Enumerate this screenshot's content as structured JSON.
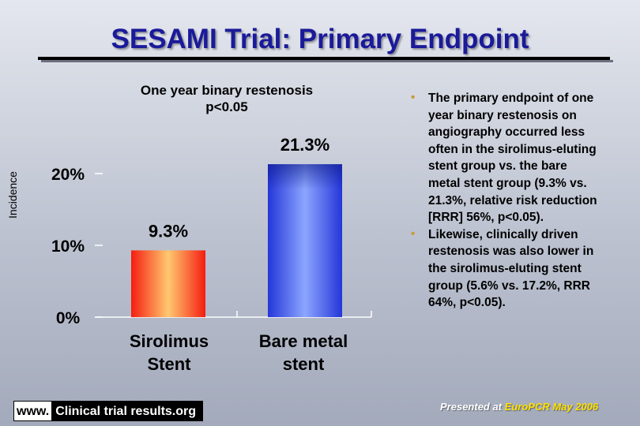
{
  "title": "SESAMI Trial: Primary Endpoint",
  "chart_data": {
    "type": "bar",
    "title": "One year binary restenosis",
    "subtitle": "p<0.05",
    "ylabel": "Incidence",
    "xlabel": "",
    "ylim": [
      0,
      25
    ],
    "yticks": [
      {
        "value": 0,
        "label": "0%"
      },
      {
        "value": 10,
        "label": "10%"
      },
      {
        "value": 20,
        "label": "20%"
      }
    ],
    "categories": [
      {
        "line1": "Sirolimus",
        "line2": "Stent"
      },
      {
        "line1": "Bare metal",
        "line2": "stent"
      }
    ],
    "values": [
      9.3,
      21.3
    ],
    "value_labels": [
      "9.3%",
      "21.3%"
    ],
    "colors": [
      "#ee3311",
      "#2e48e8"
    ],
    "grid": false
  },
  "bullets": [
    "The primary endpoint of one year binary restenosis on angiography occurred less often in the sirolimus-eluting stent group vs. the bare metal stent group (9.3% vs. 21.3%, relative risk reduction [RRR] 56%, p<0.05).",
    "Likewise, clinically driven restenosis was also lower in the sirolimus-eluting stent group (5.6% vs. 17.2%, RRR 64%, p<0.05)."
  ],
  "footer": {
    "url_prefix": "www.",
    "url_main": "Clinical trial results.org",
    "presented_prefix": "Presented at ",
    "presented_event": "EuroPCR May 2006"
  }
}
